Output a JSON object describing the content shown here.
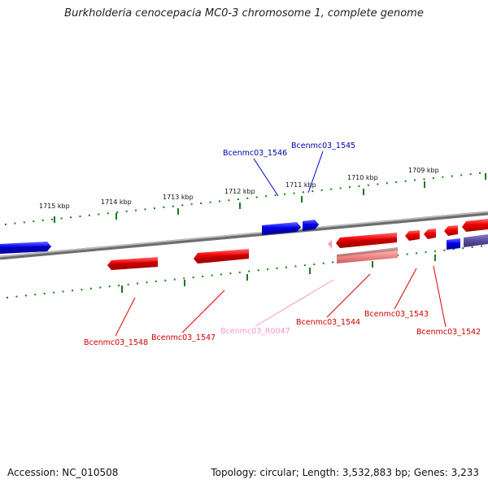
{
  "title": "Burkholderia cenocepacia MC0-3 chromosome 1, complete genome",
  "footer": {
    "accession": "Accession: NC_010508",
    "summary": "Topology: circular; Length: 3,532,883 bp; Genes: 3,233"
  },
  "colors": {
    "forward_gene": "#0000ee",
    "reverse_gene": "#ee0000",
    "rna_gene": "#f08a8a",
    "rna_label": "#f29ac8",
    "tick": "#1a7a1a",
    "backbone": "#888888",
    "hypothetical": "#5a4aa0"
  },
  "ticks": [
    {
      "label": "1715 kbp"
    },
    {
      "label": "1714 kbp"
    },
    {
      "label": "1713 kbp"
    },
    {
      "label": "1712 kbp"
    },
    {
      "label": "1711 kbp"
    },
    {
      "label": "1710 kbp"
    },
    {
      "label": "1709 kbp"
    }
  ],
  "genes": [
    {
      "name": "Bcenmc03_1546",
      "strand": "forward"
    },
    {
      "name": "Bcenmc03_1545",
      "strand": "forward"
    },
    {
      "name": "Bcenmc03_1548",
      "strand": "reverse"
    },
    {
      "name": "Bcenmc03_1547",
      "strand": "reverse"
    },
    {
      "name": "Bcenmc03_R0047",
      "strand": "reverse",
      "type": "rna"
    },
    {
      "name": "Bcenmc03_1544",
      "strand": "reverse"
    },
    {
      "name": "Bcenmc03_1543",
      "strand": "reverse"
    },
    {
      "name": "Bcenmc03_1542",
      "strand": "reverse"
    }
  ]
}
